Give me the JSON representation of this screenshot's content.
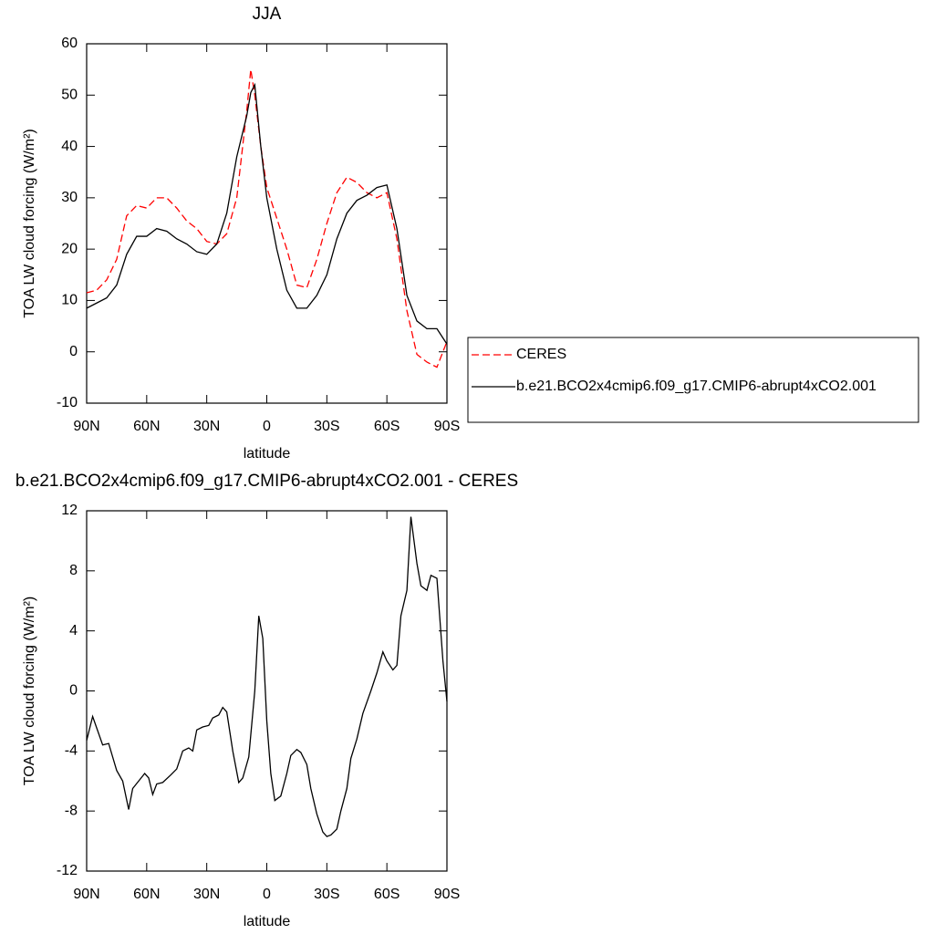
{
  "chart_data": [
    {
      "type": "line",
      "title": "JJA",
      "xlabel": "latitude",
      "ylabel": "TOA LW cloud forcing (W/m²)",
      "xlim": [
        90,
        -90
      ],
      "xticks": [
        {
          "value": 90,
          "label": "90N"
        },
        {
          "value": 60,
          "label": "60N"
        },
        {
          "value": 30,
          "label": "30N"
        },
        0,
        {
          "value": -30,
          "label": "30S"
        },
        {
          "value": -60,
          "label": "60S"
        },
        {
          "value": -90,
          "label": "90S"
        }
      ],
      "ylim": [
        -10,
        60
      ],
      "yticks": [
        -10,
        0,
        10,
        20,
        30,
        40,
        50,
        60
      ],
      "legend": "right",
      "x": [
        90,
        85,
        80,
        75,
        70,
        65,
        60,
        55,
        50,
        45,
        40,
        35,
        30,
        25,
        20,
        15,
        10,
        8,
        6,
        3,
        0,
        -5,
        -10,
        -15,
        -20,
        -25,
        -30,
        -35,
        -40,
        -45,
        -50,
        -55,
        -60,
        -65,
        -70,
        -75,
        -80,
        -85,
        -90
      ],
      "series": [
        {
          "name": "CERES",
          "color": "#ff0000",
          "dashed": true,
          "values": [
            11.5,
            12,
            14,
            18,
            26.5,
            28.5,
            28,
            30,
            30,
            28,
            25.5,
            24,
            21.5,
            21,
            23,
            30,
            47,
            55,
            50,
            40,
            32,
            26,
            20,
            13,
            12.5,
            18,
            25,
            31,
            34,
            33,
            31,
            30,
            31,
            22,
            8,
            -0.5,
            -2,
            -3,
            2
          ]
        },
        {
          "name": "b.e21.BCO2x4cmip6.f09_g17.CMIP6-abrupt4xCO2.001",
          "color": "#000000",
          "dashed": false,
          "values": [
            8.5,
            9.5,
            10.5,
            13,
            19,
            22.5,
            22.5,
            24,
            23.5,
            22,
            21,
            19.5,
            19,
            21,
            27,
            38,
            46,
            50.5,
            52,
            40,
            30,
            20,
            12,
            8.5,
            8.5,
            11,
            15,
            22,
            27,
            29.5,
            30.5,
            32,
            32.5,
            24,
            11,
            6,
            4.5,
            4.5,
            1.5
          ]
        }
      ]
    },
    {
      "type": "line",
      "title": "b.e21.BCO2x4cmip6.f09_g17.CMIP6-abrupt4xCO2.001 - CERES",
      "xlabel": "latitude",
      "ylabel": "TOA LW cloud forcing (W/m²)",
      "xlim": [
        90,
        -90
      ],
      "xticks": [
        {
          "value": 90,
          "label": "90N"
        },
        {
          "value": 60,
          "label": "60N"
        },
        {
          "value": 30,
          "label": "30N"
        },
        0,
        {
          "value": -30,
          "label": "30S"
        },
        {
          "value": -60,
          "label": "60S"
        },
        {
          "value": -90,
          "label": "90S"
        }
      ],
      "ylim": [
        -12,
        12
      ],
      "yticks": [
        -12,
        -8,
        -4,
        0,
        4,
        8,
        12
      ],
      "x": [
        90,
        87,
        82,
        79,
        75,
        72,
        69,
        67,
        64,
        61,
        59,
        57,
        55,
        52,
        48,
        45,
        42,
        39,
        37,
        35,
        32,
        29,
        27,
        24,
        22,
        20,
        17,
        14,
        12,
        9,
        6,
        4,
        2,
        0,
        -2,
        -4,
        -7,
        -10,
        -12,
        -15,
        -17,
        -20,
        -22,
        -25,
        -28,
        -30,
        -32,
        -35,
        -37,
        -40,
        -42,
        -45,
        -48,
        -52,
        -55,
        -58,
        -60,
        -63,
        -65,
        -67,
        -70,
        -72,
        -75,
        -77,
        -80,
        -82,
        -85,
        -88,
        -90
      ],
      "color": "#000000",
      "values": [
        -3.3,
        -1.7,
        -3.6,
        -3.5,
        -5.3,
        -6,
        -7.9,
        -6.5,
        -6,
        -5.5,
        -5.8,
        -6.9,
        -6.2,
        -6.1,
        -5.6,
        -5.2,
        -4,
        -3.8,
        -4,
        -2.6,
        -2.4,
        -2.3,
        -1.8,
        -1.6,
        -1.1,
        -1.4,
        -4,
        -6.1,
        -5.8,
        -4.4,
        0,
        5,
        3.5,
        -2,
        -5.5,
        -7.3,
        -7,
        -5.5,
        -4.3,
        -3.9,
        -4.1,
        -4.9,
        -6.5,
        -8.2,
        -9.4,
        -9.7,
        -9.6,
        -9.2,
        -8,
        -6.5,
        -4.5,
        -3.2,
        -1.5,
        0,
        1.2,
        2.6,
        2,
        1.4,
        1.7,
        5,
        6.7,
        11.6,
        8.5,
        7,
        6.7,
        7.7,
        7.5,
        2,
        -0.7
      ]
    }
  ]
}
